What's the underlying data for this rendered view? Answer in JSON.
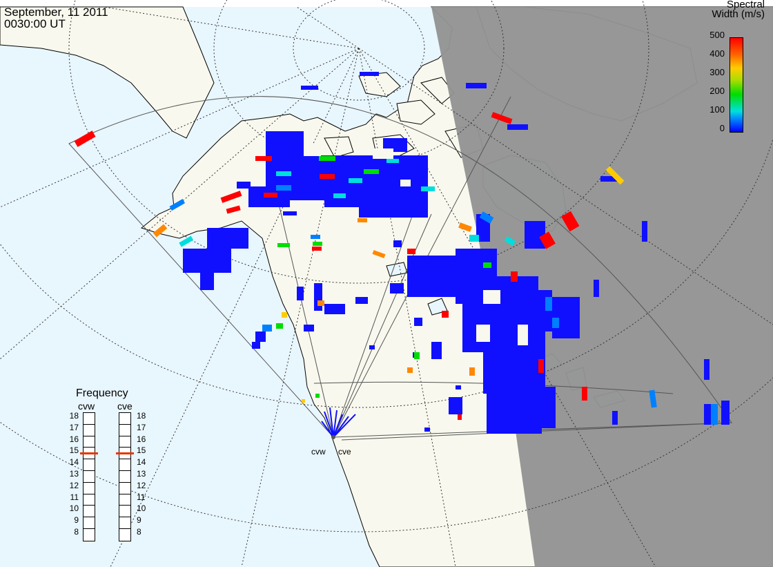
{
  "header": {
    "date": "September, 11 2011",
    "time": "0030:00 UT"
  },
  "colorbar": {
    "title_line1": "Spectral",
    "title_line2": "Width (m/s)",
    "ticks": [
      "500",
      "400",
      "300",
      "200",
      "100",
      "0"
    ],
    "range": [
      0,
      500
    ],
    "colors": [
      "#0000ff",
      "#0077ff",
      "#00e0e0",
      "#00dd00",
      "#ffcc00",
      "#ff6600",
      "#ff0000"
    ]
  },
  "frequency_panel": {
    "title": "Frequency",
    "radars": [
      {
        "name": "cvw",
        "frequency": 15
      },
      {
        "name": "cve",
        "frequency": 15
      }
    ],
    "scale": [
      "18",
      "17",
      "16",
      "15",
      "14",
      "13",
      "12",
      "11",
      "10",
      "9",
      "8"
    ]
  },
  "radar_sites": [
    {
      "name": "cvw"
    },
    {
      "name": "cve"
    }
  ],
  "colors": {
    "ocean": "#e8f6fd",
    "land": "#f8f8ee",
    "night": "#939393",
    "coast": "#000000",
    "fov": "#444444",
    "freq_marker": "#ee3300"
  }
}
